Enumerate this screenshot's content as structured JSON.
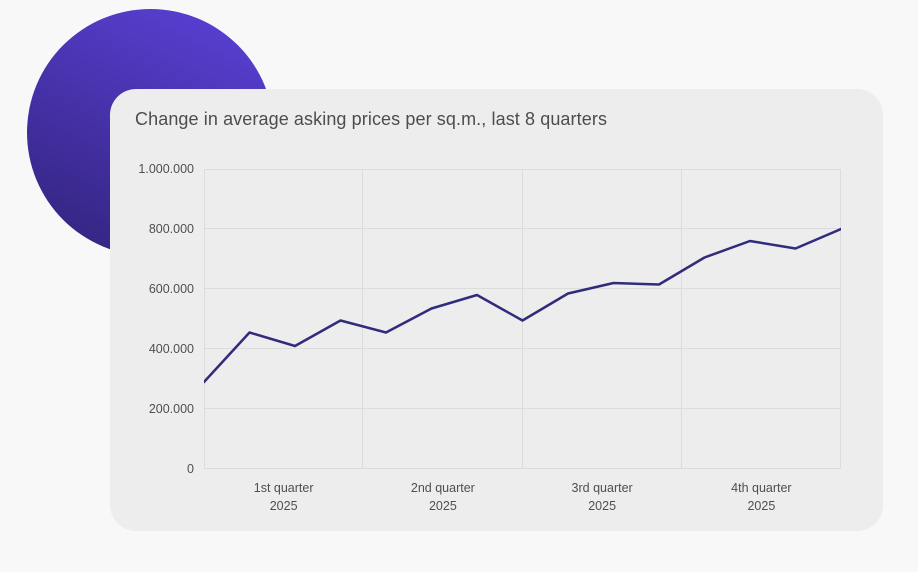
{
  "card": {
    "background": "#ededed"
  },
  "decor": {
    "circle_gradient_start": "#5b40d6",
    "circle_gradient_end": "#33247e"
  },
  "chart_data": {
    "type": "line",
    "title": "Change in average asking prices per sq.m., last 8 quarters",
    "values": [
      290000,
      455000,
      410000,
      495000,
      455000,
      535000,
      580000,
      495000,
      585000,
      620000,
      615000,
      705000,
      760000,
      735000,
      800000
    ],
    "ylim": [
      0,
      1000000
    ],
    "y_ticks": [
      "1.000.000",
      "800.000",
      "600.000",
      "400.000",
      "200.000",
      "0"
    ],
    "x_labels": [
      {
        "label": "1st quarter",
        "year": "2025"
      },
      {
        "label": "2nd quarter",
        "year": "2025"
      },
      {
        "label": "3rd quarter",
        "year": "2025"
      },
      {
        "label": "4th quarter",
        "year": "2025"
      }
    ],
    "grid": true,
    "legend": false,
    "line_color": "#312b7c",
    "grid_color": "#dcdcdc"
  }
}
